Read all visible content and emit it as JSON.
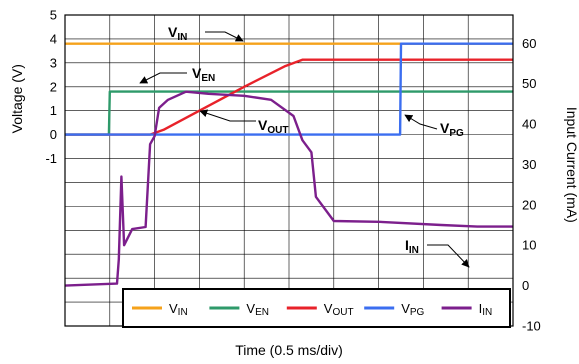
{
  "chart_data": {
    "type": "line",
    "title": "",
    "xlabel": "Time (0.5 ms/div)",
    "x_unit": "ms",
    "x_range": [
      0,
      5.0
    ],
    "y_left": {
      "label": "Voltage (V)",
      "range": [
        -8,
        5
      ],
      "ticks": [
        "5",
        "4",
        "3",
        "2",
        "1",
        "0",
        "-1"
      ]
    },
    "y_right": {
      "label": "Input Current (mA)",
      "range": [
        -10,
        67
      ],
      "ticks": [
        "60",
        "50",
        "40",
        "30",
        "20",
        "10",
        "0",
        "-10"
      ]
    },
    "grid": true,
    "legend": {
      "placement": "bottom-right",
      "entries": [
        {
          "main": "V",
          "sub": "IN",
          "color": "#f5a21b"
        },
        {
          "main": "V",
          "sub": "EN",
          "color": "#2e9a6a"
        },
        {
          "main": "V",
          "sub": "OUT",
          "color": "#e8222a"
        },
        {
          "main": "V",
          "sub": "PG",
          "color": "#3b6ef0"
        },
        {
          "main": "I",
          "sub": "IN",
          "color": "#7c1f8c"
        }
      ]
    },
    "annotations": [
      {
        "main": "V",
        "sub": "IN",
        "series": "VIN"
      },
      {
        "main": "V",
        "sub": "EN",
        "series": "VEN"
      },
      {
        "main": "V",
        "sub": "OUT",
        "series": "VOUT"
      },
      {
        "main": "V",
        "sub": "PG",
        "series": "VPG"
      },
      {
        "main": "I",
        "sub": "IN",
        "series": "IIN"
      }
    ],
    "series": [
      {
        "key": "VIN",
        "axis": "left",
        "color": "#f5a21b",
        "points": [
          [
            0,
            3.8
          ],
          [
            5.0,
            3.8
          ]
        ]
      },
      {
        "key": "VEN",
        "axis": "left",
        "color": "#2e9a6a",
        "points": [
          [
            0,
            0
          ],
          [
            0.49,
            0
          ],
          [
            0.5,
            1.8
          ],
          [
            5.0,
            1.8
          ]
        ]
      },
      {
        "key": "VOUT",
        "axis": "left",
        "color": "#e8222a",
        "points": [
          [
            0,
            0
          ],
          [
            0.95,
            0
          ],
          [
            1.1,
            0.2
          ],
          [
            1.5,
            1.0
          ],
          [
            2.0,
            2.0
          ],
          [
            2.45,
            2.85
          ],
          [
            2.65,
            3.13
          ],
          [
            5.0,
            3.13
          ]
        ]
      },
      {
        "key": "VPG",
        "axis": "left",
        "color": "#3b6ef0",
        "points": [
          [
            0,
            0
          ],
          [
            3.74,
            0
          ],
          [
            3.75,
            3.8
          ],
          [
            5.0,
            3.8
          ]
        ]
      },
      {
        "key": "IIN",
        "axis": "right",
        "color": "#7c1f8c",
        "points": [
          [
            0,
            0
          ],
          [
            0.58,
            0.5
          ],
          [
            0.6,
            6.5
          ],
          [
            0.63,
            27
          ],
          [
            0.66,
            10
          ],
          [
            0.75,
            14
          ],
          [
            0.9,
            14.5
          ],
          [
            0.95,
            35
          ],
          [
            1.0,
            37
          ],
          [
            1.05,
            44
          ],
          [
            1.15,
            46
          ],
          [
            1.35,
            48
          ],
          [
            1.6,
            47.5
          ],
          [
            2.0,
            47
          ],
          [
            2.3,
            46
          ],
          [
            2.55,
            42
          ],
          [
            2.65,
            36
          ],
          [
            2.75,
            33
          ],
          [
            2.8,
            22
          ],
          [
            3.0,
            16
          ],
          [
            3.5,
            15.8
          ],
          [
            4.2,
            15
          ],
          [
            4.6,
            14.6
          ],
          [
            5.0,
            14.6
          ]
        ]
      }
    ]
  }
}
